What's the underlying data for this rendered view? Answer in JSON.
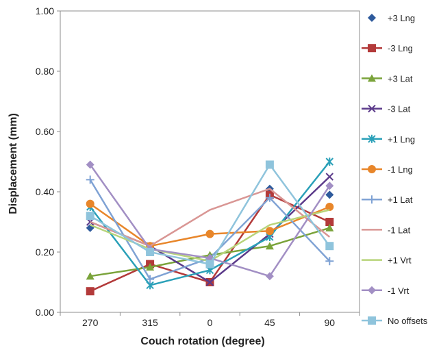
{
  "chart_data": {
    "type": "line",
    "title": "",
    "xlabel": "Couch rotation (degree)",
    "ylabel": "Displacement (mm)",
    "categories": [
      "270",
      "315",
      "0",
      "45",
      "90"
    ],
    "ylim": [
      0,
      1
    ],
    "yticks": [
      "0.00",
      "0.20",
      "0.40",
      "0.60",
      "0.80",
      "1.00"
    ],
    "ytick_values": [
      0,
      0.2,
      0.4,
      0.6,
      0.8,
      1.0
    ],
    "grid": false,
    "legend": "right",
    "series": [
      {
        "name": "+3 Lng",
        "color": "#2e5a9c",
        "marker": "diamond",
        "line": false,
        "values": [
          0.28,
          0.2,
          0.18,
          0.41,
          0.39
        ]
      },
      {
        "name": "-3 Lng",
        "color": "#b33a3a",
        "marker": "square",
        "line": true,
        "values": [
          0.07,
          0.16,
          0.1,
          0.39,
          0.3
        ]
      },
      {
        "name": "+3 Lat",
        "color": "#7aa33a",
        "marker": "triangle",
        "line": true,
        "values": [
          0.12,
          0.15,
          0.19,
          0.22,
          0.28
        ]
      },
      {
        "name": "-3 Lat",
        "color": "#5b3a8a",
        "marker": "x",
        "line": true,
        "values": [
          0.3,
          0.22,
          0.1,
          0.26,
          0.45
        ]
      },
      {
        "name": "+1 Lng",
        "color": "#2aa0b8",
        "marker": "star",
        "line": true,
        "values": [
          0.35,
          0.09,
          0.14,
          0.25,
          0.5
        ]
      },
      {
        "name": "-1 Lng",
        "color": "#e8862a",
        "marker": "circle",
        "line": true,
        "values": [
          0.36,
          0.22,
          0.26,
          0.27,
          0.35
        ]
      },
      {
        "name": "+1 Lat",
        "color": "#7fa2d4",
        "marker": "plus",
        "line": true,
        "values": [
          0.44,
          0.11,
          0.18,
          0.38,
          0.17
        ]
      },
      {
        "name": "-1 Lat",
        "color": "#d99694",
        "marker": "none",
        "line": true,
        "values": [
          0.3,
          0.22,
          0.34,
          0.41,
          0.25
        ]
      },
      {
        "name": "+1 Vrt",
        "color": "#b8d47a",
        "marker": "none",
        "line": true,
        "values": [
          0.29,
          0.21,
          0.17,
          0.29,
          0.34
        ]
      },
      {
        "name": "-1 Vrt",
        "color": "#a28fc4",
        "marker": "diamond",
        "line": true,
        "values": [
          0.49,
          0.21,
          0.18,
          0.12,
          0.42
        ]
      },
      {
        "name": "No offsets",
        "color": "#8fc4dc",
        "marker": "square",
        "line": true,
        "values": [
          0.32,
          0.2,
          0.16,
          0.49,
          0.22
        ]
      }
    ]
  }
}
